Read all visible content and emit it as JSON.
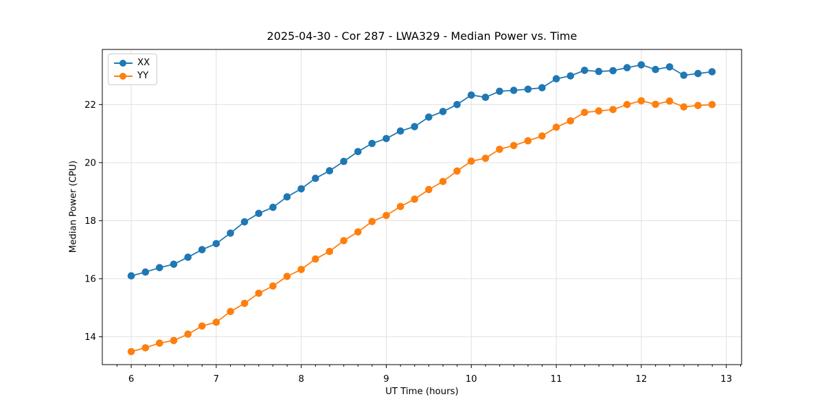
{
  "chart_data": {
    "type": "line",
    "title": "2025-04-30 - Cor 287 - LWA329 - Median Power vs. Time",
    "xlabel": "UT Time (hours)",
    "ylabel": "Median Power (CPU)",
    "xlim": [
      5.66,
      13.18
    ],
    "ylim": [
      13.04,
      23.9
    ],
    "xticks": [
      6,
      7,
      8,
      9,
      10,
      11,
      12,
      13
    ],
    "yticks": [
      14,
      16,
      18,
      20,
      22
    ],
    "x_minor_tick_interval": 0.1667,
    "grid": true,
    "legend_position": "upper-left",
    "x": [
      6.0,
      6.167,
      6.333,
      6.5,
      6.667,
      6.833,
      7.0,
      7.167,
      7.333,
      7.5,
      7.667,
      7.833,
      8.0,
      8.167,
      8.333,
      8.5,
      8.667,
      8.833,
      9.0,
      9.167,
      9.333,
      9.5,
      9.667,
      9.833,
      10.0,
      10.167,
      10.333,
      10.5,
      10.667,
      10.833,
      11.0,
      11.167,
      11.333,
      11.5,
      11.667,
      11.833,
      12.0,
      12.167,
      12.333,
      12.5,
      12.667,
      12.833
    ],
    "series": [
      {
        "name": "XX",
        "color": "#1f77b4",
        "values": [
          16.1,
          16.23,
          16.38,
          16.5,
          16.74,
          17.0,
          17.21,
          17.57,
          17.96,
          18.25,
          18.46,
          18.82,
          19.1,
          19.46,
          19.72,
          20.04,
          20.38,
          20.66,
          20.83,
          21.09,
          21.24,
          21.57,
          21.76,
          22.0,
          22.33,
          22.25,
          22.46,
          22.49,
          22.53,
          22.58,
          22.89,
          22.99,
          23.18,
          23.14,
          23.17,
          23.27,
          23.37,
          23.21,
          23.3,
          23.01,
          23.07,
          23.13
        ]
      },
      {
        "name": "YY",
        "color": "#ff7f0e",
        "values": [
          13.49,
          13.62,
          13.78,
          13.87,
          14.09,
          14.37,
          14.5,
          14.87,
          15.15,
          15.5,
          15.75,
          16.08,
          16.32,
          16.68,
          16.94,
          17.31,
          17.61,
          17.97,
          18.18,
          18.49,
          18.74,
          19.07,
          19.35,
          19.71,
          20.05,
          20.15,
          20.46,
          20.59,
          20.75,
          20.92,
          21.22,
          21.44,
          21.73,
          21.78,
          21.83,
          22.0,
          22.13,
          22.01,
          22.12,
          21.92,
          21.97,
          22.0
        ]
      }
    ]
  }
}
